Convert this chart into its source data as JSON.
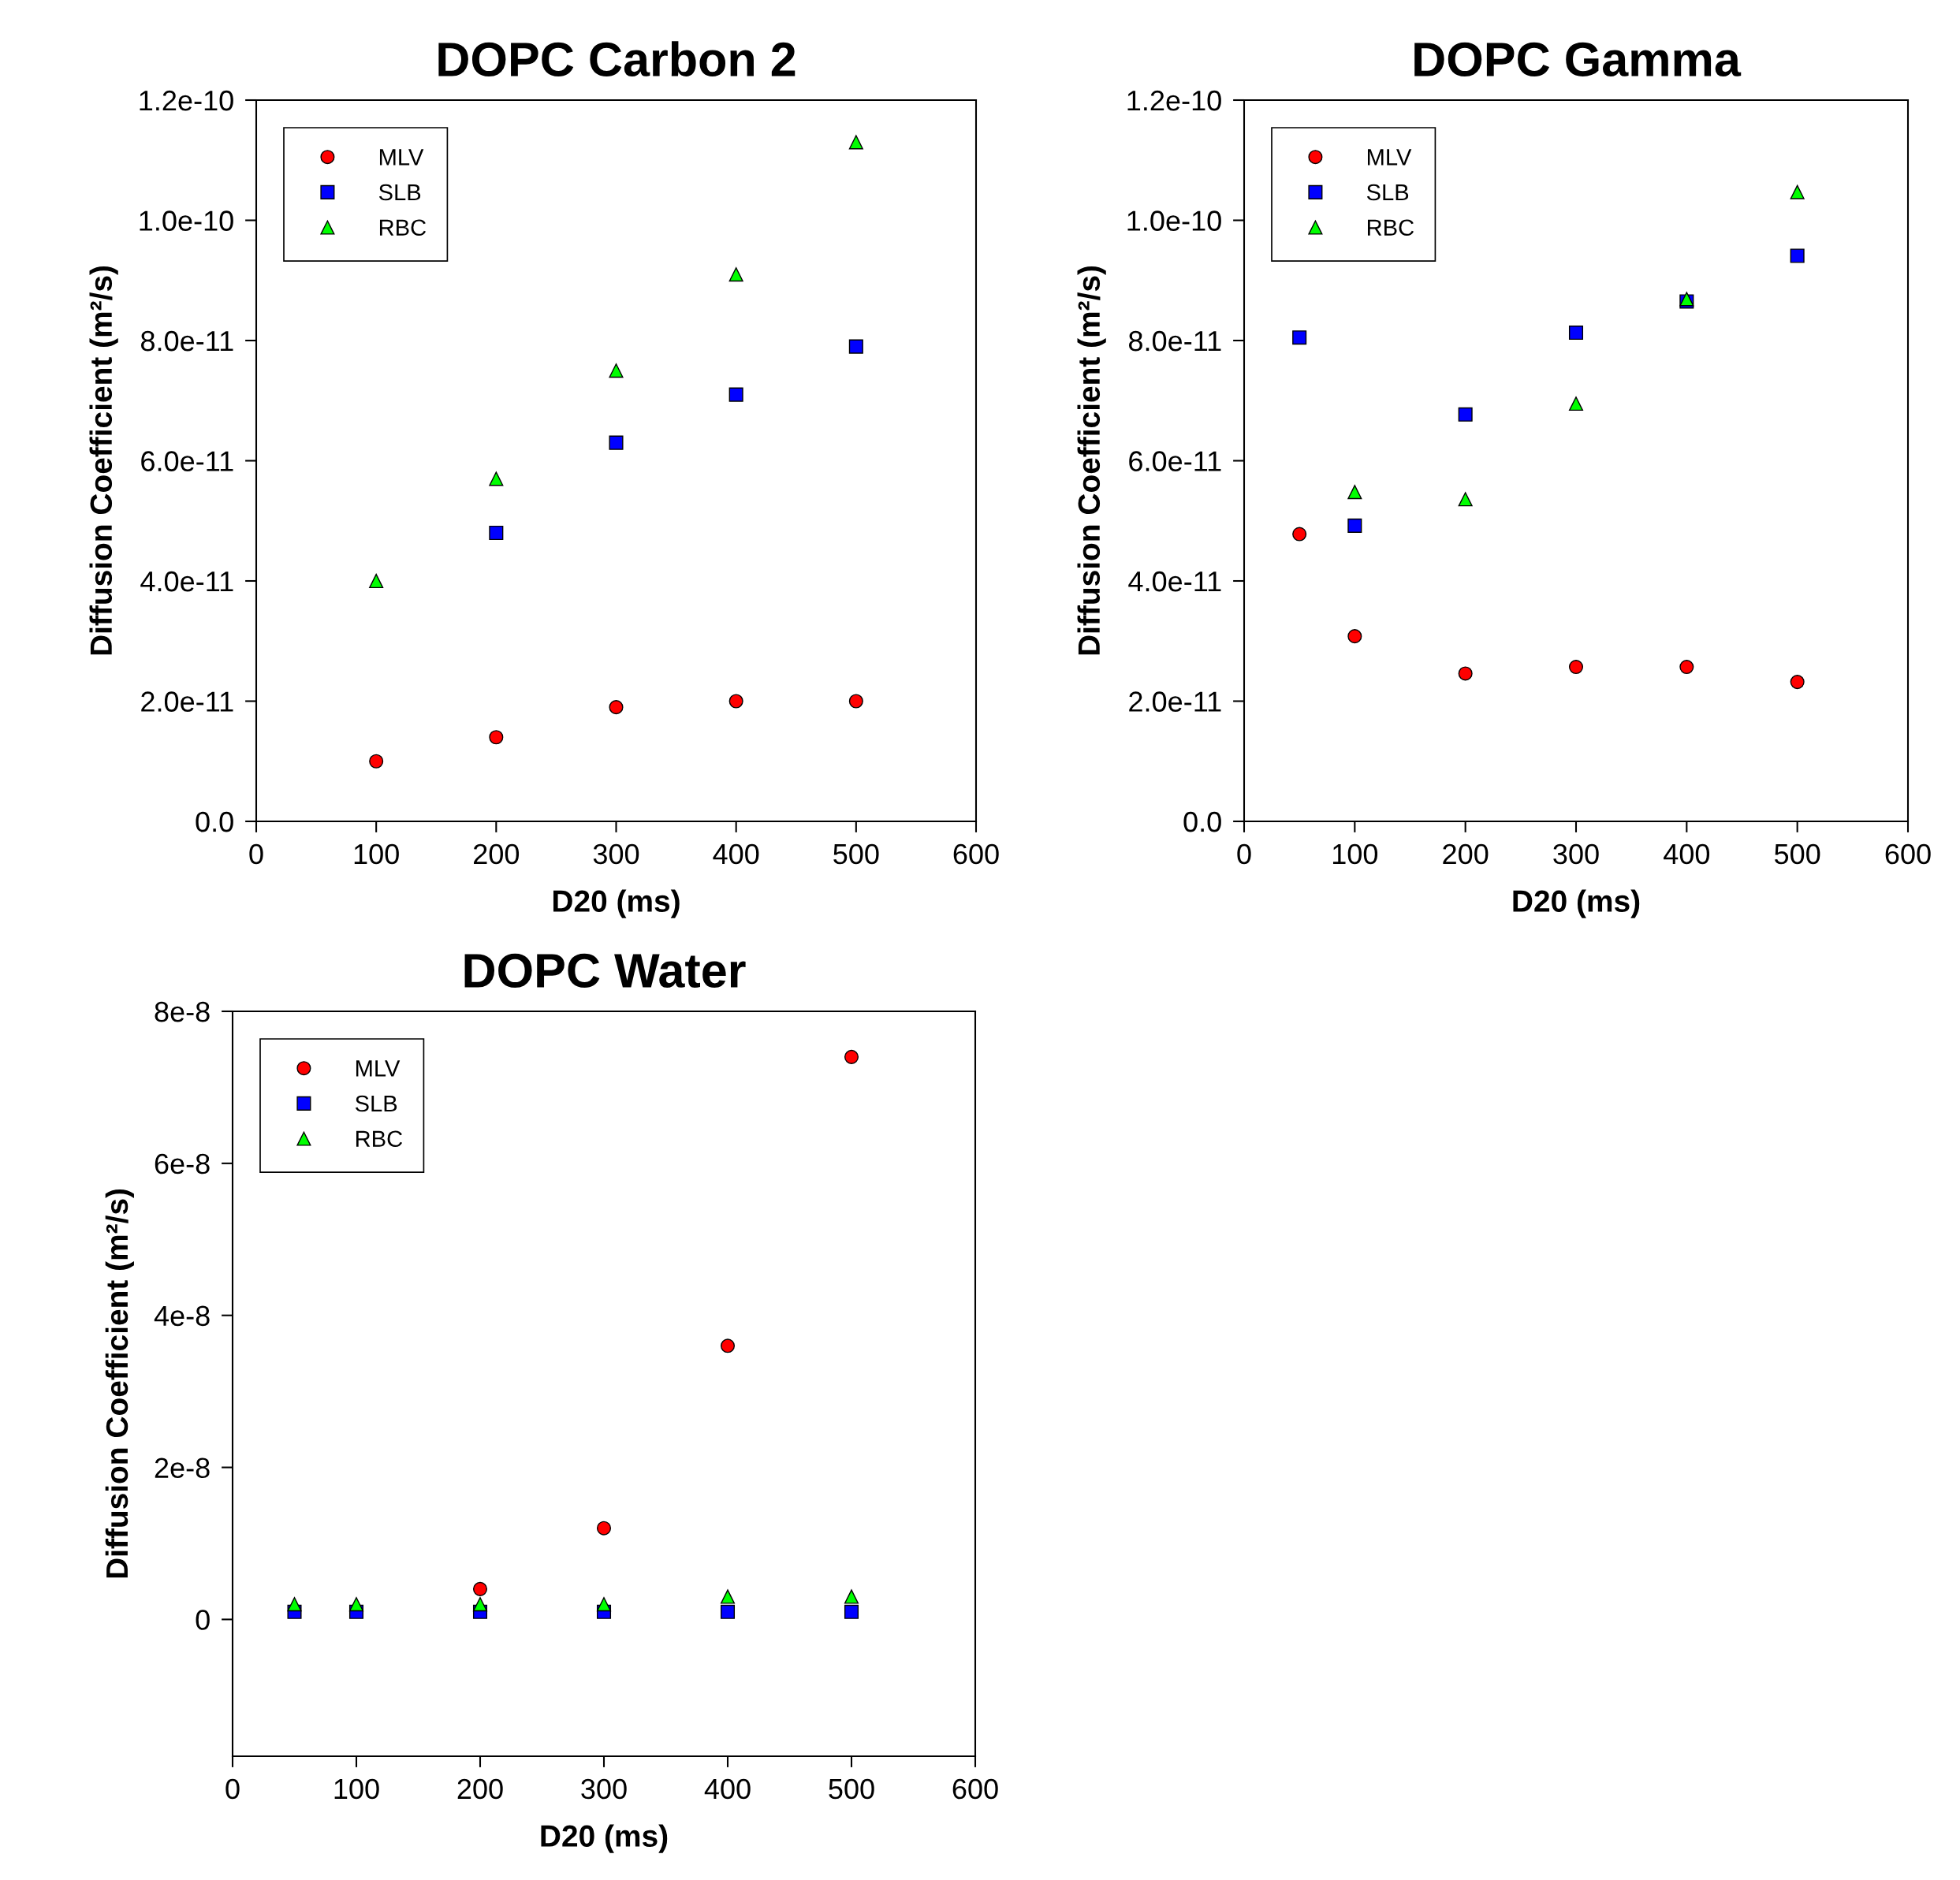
{
  "chart_data": [
    {
      "type": "scatter",
      "title": "DOPC Carbon 2",
      "xlabel": "D20 (ms)",
      "ylabel": "Diffusion Coefficient (m²/s)",
      "legend": "top left",
      "grid": false,
      "xlim": [
        0,
        600
      ],
      "xticks": [
        0,
        100,
        200,
        300,
        400,
        500,
        600
      ],
      "ylim": [
        0,
        1.2e-10
      ],
      "yticks": [
        {
          "value": 0,
          "label": "0.0"
        },
        {
          "value": 2e-11,
          "label": "2.0e-11"
        },
        {
          "value": 4e-11,
          "label": "4.0e-11"
        },
        {
          "value": 6e-11,
          "label": "6.0e-11"
        },
        {
          "value": 8e-11,
          "label": "8.0e-11"
        },
        {
          "value": 1e-10,
          "label": "1.0e-10"
        },
        {
          "value": 1.2e-10,
          "label": "1.2e-10"
        }
      ],
      "series": [
        {
          "name": "MLV",
          "color": "#ff0000",
          "marker": "circle",
          "x": [
            100,
            200,
            300,
            400,
            500
          ],
          "values": [
            1e-11,
            1.4e-11,
            1.9e-11,
            2e-11,
            2e-11
          ]
        },
        {
          "name": "SLB",
          "color": "#0000ff",
          "marker": "square",
          "x": [
            200,
            300,
            400,
            500
          ],
          "values": [
            4.8e-11,
            6.3e-11,
            7.1e-11,
            7.9e-11
          ]
        },
        {
          "name": "RBC",
          "color": "#00ff00",
          "marker": "triangle",
          "x": [
            100,
            200,
            300,
            400,
            500
          ],
          "values": [
            4e-11,
            5.7e-11,
            7.5e-11,
            9.1e-11,
            1.13e-10
          ]
        }
      ]
    },
    {
      "type": "scatter",
      "title": "DOPC Gamma",
      "xlabel": "D20 (ms)",
      "ylabel": "Diffusion Coefficient (m²/s)",
      "legend": "top left",
      "grid": false,
      "xlim": [
        0,
        600
      ],
      "xticks": [
        0,
        100,
        200,
        300,
        400,
        500,
        600
      ],
      "ylim": [
        0,
        1.2e-10
      ],
      "yticks": [
        {
          "value": 0,
          "label": "0.0"
        },
        {
          "value": 2e-11,
          "label": "2.0e-11"
        },
        {
          "value": 4e-11,
          "label": "4.0e-11"
        },
        {
          "value": 6e-11,
          "label": "6.0e-11"
        },
        {
          "value": 8e-11,
          "label": "8.0e-11"
        },
        {
          "value": 1e-10,
          "label": "1.0e-10"
        },
        {
          "value": 1.2e-10,
          "label": "1.2e-10"
        }
      ],
      "series": [
        {
          "name": "MLV",
          "color": "#ff0000",
          "marker": "circle",
          "x": [
            50,
            100,
            200,
            300,
            400,
            500
          ],
          "values": [
            4.78e-11,
            3.08e-11,
            2.46e-11,
            2.57e-11,
            2.57e-11,
            2.32e-11
          ]
        },
        {
          "name": "SLB",
          "color": "#0000ff",
          "marker": "square",
          "x": [
            50,
            100,
            200,
            300,
            400,
            500
          ],
          "values": [
            8.05e-11,
            4.92e-11,
            6.77e-11,
            8.13e-11,
            8.65e-11,
            9.41e-11
          ]
        },
        {
          "name": "RBC",
          "color": "#00ff00",
          "marker": "triangle",
          "x": [
            100,
            200,
            300,
            400,
            500
          ],
          "values": [
            5.48e-11,
            5.36e-11,
            6.95e-11,
            8.69e-11,
            1.047e-10
          ]
        }
      ]
    },
    {
      "type": "scatter",
      "title": "DOPC Water",
      "xlabel": "D20 (ms)",
      "ylabel": "Diffusion Coefficient (m²/s)",
      "legend": "top left",
      "grid": false,
      "xlim": [
        0,
        600
      ],
      "xticks": [
        0,
        100,
        200,
        300,
        400,
        500,
        600
      ],
      "ylim": [
        -1.8e-08,
        8e-08
      ],
      "yticks": [
        {
          "value": 0,
          "label": "0"
        },
        {
          "value": 2e-08,
          "label": "2e-8"
        },
        {
          "value": 4e-08,
          "label": "4e-8"
        },
        {
          "value": 6e-08,
          "label": "6e-8"
        },
        {
          "value": 8e-08,
          "label": "8e-8"
        }
      ],
      "series": [
        {
          "name": "MLV",
          "color": "#ff0000",
          "marker": "circle",
          "x": [
            200,
            300,
            400,
            500
          ],
          "values": [
            4e-09,
            1.2e-08,
            3.6e-08,
            7.4e-08
          ]
        },
        {
          "name": "SLB",
          "color": "#0000ff",
          "marker": "square",
          "x": [
            50,
            100,
            200,
            300,
            400,
            500
          ],
          "values": [
            1e-09,
            1e-09,
            1e-09,
            1e-09,
            1e-09,
            1e-09
          ]
        },
        {
          "name": "RBC",
          "color": "#00ff00",
          "marker": "triangle",
          "x": [
            50,
            100,
            200,
            300,
            400,
            500
          ],
          "values": [
            2e-09,
            2e-09,
            2e-09,
            2e-09,
            3e-09,
            3e-09
          ]
        }
      ]
    }
  ]
}
